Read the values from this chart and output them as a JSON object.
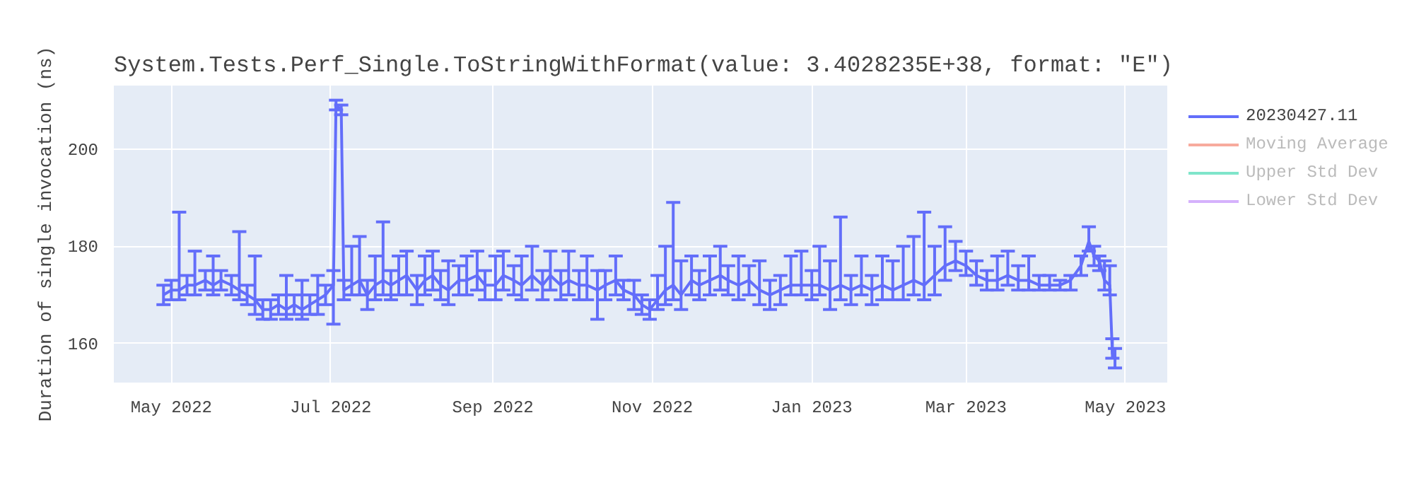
{
  "chart_data": {
    "type": "line",
    "title": "System.Tests.Perf_Single.ToStringWithFormat(value: 3.4028235E+38, format: \"E\")",
    "ylabel": "Duration of single invocation (ns)",
    "x": [
      "2022-04-28",
      "2022-05-01",
      "2022-05-04",
      "2022-05-07",
      "2022-05-10",
      "2022-05-14",
      "2022-05-17",
      "2022-05-20",
      "2022-05-24",
      "2022-05-27",
      "2022-05-30",
      "2022-06-02",
      "2022-06-05",
      "2022-06-08",
      "2022-06-11",
      "2022-06-14",
      "2022-06-17",
      "2022-06-20",
      "2022-06-23",
      "2022-06-26",
      "2022-06-29",
      "2022-07-02",
      "2022-07-03",
      "2022-07-05",
      "2022-07-06",
      "2022-07-09",
      "2022-07-12",
      "2022-07-15",
      "2022-07-18",
      "2022-07-21",
      "2022-07-24",
      "2022-07-27",
      "2022-07-30",
      "2022-08-03",
      "2022-08-06",
      "2022-08-09",
      "2022-08-12",
      "2022-08-15",
      "2022-08-19",
      "2022-08-22",
      "2022-08-26",
      "2022-08-29",
      "2022-09-02",
      "2022-09-05",
      "2022-09-09",
      "2022-09-12",
      "2022-09-16",
      "2022-09-20",
      "2022-09-23",
      "2022-09-27",
      "2022-09-30",
      "2022-10-04",
      "2022-10-07",
      "2022-10-11",
      "2022-10-14",
      "2022-10-18",
      "2022-10-21",
      "2022-10-25",
      "2022-10-28",
      "2022-10-31",
      "2022-11-03",
      "2022-11-06",
      "2022-11-09",
      "2022-11-12",
      "2022-11-16",
      "2022-11-19",
      "2022-11-23",
      "2022-11-27",
      "2022-11-30",
      "2022-12-04",
      "2022-12-08",
      "2022-12-12",
      "2022-12-16",
      "2022-12-20",
      "2022-12-24",
      "2022-12-28",
      "2023-01-01",
      "2023-01-04",
      "2023-01-08",
      "2023-01-12",
      "2023-01-16",
      "2023-01-20",
      "2023-01-24",
      "2023-01-28",
      "2023-02-01",
      "2023-02-05",
      "2023-02-09",
      "2023-02-13",
      "2023-02-17",
      "2023-02-21",
      "2023-02-25",
      "2023-03-01",
      "2023-03-05",
      "2023-03-09",
      "2023-03-13",
      "2023-03-17",
      "2023-03-21",
      "2023-03-25",
      "2023-03-29",
      "2023-04-02",
      "2023-04-06",
      "2023-04-10",
      "2023-04-14",
      "2023-04-17",
      "2023-04-19",
      "2023-04-21",
      "2023-04-23",
      "2023-04-25",
      "2023-04-26",
      "2023-04-27"
    ],
    "series": [
      {
        "name": "20230427.11",
        "color": "#636efa",
        "values": [
          170,
          171,
          171,
          172,
          172,
          173,
          172,
          173,
          172,
          171,
          170,
          169,
          167,
          167,
          168,
          167,
          168,
          167,
          168,
          169,
          170,
          172,
          209,
          208,
          171,
          172,
          173,
          170,
          172,
          173,
          172,
          173,
          174,
          171,
          173,
          174,
          172,
          171,
          173,
          173,
          174,
          172,
          172,
          174,
          173,
          172,
          174,
          172,
          174,
          172,
          173,
          172,
          172,
          171,
          172,
          173,
          171,
          170,
          168,
          167,
          169,
          171,
          172,
          170,
          173,
          172,
          173,
          174,
          173,
          172,
          173,
          171,
          170,
          171,
          172,
          172,
          172,
          172,
          171,
          172,
          171,
          172,
          171,
          172,
          171,
          172,
          173,
          172,
          174,
          176,
          177,
          176,
          174,
          173,
          173,
          174,
          173,
          173,
          172,
          172,
          172,
          173,
          176,
          181,
          178,
          177,
          173,
          172,
          158,
          157
        ],
        "errors": [
          2,
          2,
          [
            169,
            187
          ],
          2,
          [
            170,
            179
          ],
          2,
          [
            170,
            178
          ],
          2,
          2,
          [
            169,
            183
          ],
          2,
          [
            166,
            178
          ],
          2,
          2,
          2,
          [
            165,
            174
          ],
          2,
          [
            165,
            173
          ],
          2,
          [
            166,
            174
          ],
          2,
          [
            164,
            175
          ],
          1,
          1,
          2,
          [
            170,
            180
          ],
          [
            170,
            182
          ],
          3,
          [
            169,
            178
          ],
          [
            170,
            185
          ],
          3,
          [
            170,
            178
          ],
          [
            170,
            179
          ],
          3,
          [
            170,
            178
          ],
          [
            171,
            179
          ],
          3,
          [
            168,
            177
          ],
          3,
          [
            170,
            178
          ],
          [
            171,
            179
          ],
          3,
          [
            169,
            178
          ],
          [
            171,
            179
          ],
          3,
          [
            169,
            178
          ],
          [
            171,
            180
          ],
          3,
          [
            171,
            179
          ],
          3,
          [
            170,
            179
          ],
          3,
          [
            169,
            178
          ],
          [
            165,
            175
          ],
          3,
          [
            170,
            178
          ],
          2,
          3,
          2,
          2,
          [
            167,
            174
          ],
          [
            168,
            180
          ],
          [
            169,
            189
          ],
          [
            167,
            177
          ],
          [
            170,
            178
          ],
          3,
          [
            170,
            178
          ],
          [
            171,
            180
          ],
          3,
          [
            169,
            178
          ],
          3,
          [
            168,
            177
          ],
          3,
          3,
          [
            170,
            178
          ],
          [
            170,
            179
          ],
          3,
          [
            170,
            180
          ],
          [
            167,
            177
          ],
          [
            169,
            186
          ],
          3,
          [
            170,
            178
          ],
          3,
          [
            169,
            178
          ],
          [
            169,
            177
          ],
          [
            169,
            180
          ],
          [
            170,
            182
          ],
          [
            169,
            187
          ],
          [
            170,
            180
          ],
          [
            173,
            184
          ],
          [
            175,
            181
          ],
          [
            174,
            179
          ],
          [
            172,
            177
          ],
          [
            171,
            175
          ],
          [
            171,
            178
          ],
          [
            172,
            179
          ],
          [
            171,
            176
          ],
          [
            171,
            178
          ],
          [
            171,
            174
          ],
          [
            171,
            174
          ],
          [
            171,
            173
          ],
          [
            171,
            174
          ],
          [
            174,
            178
          ],
          [
            179,
            184
          ],
          [
            176,
            180
          ],
          [
            175,
            178
          ],
          [
            171,
            177
          ],
          [
            170,
            176
          ],
          [
            157,
            161
          ],
          [
            155,
            159
          ]
        ]
      },
      {
        "name": "Moving Average",
        "color": "#ef553b",
        "values": [
          null,
          null,
          null,
          null,
          null,
          null,
          null,
          null,
          null,
          null,
          null,
          null,
          null,
          null,
          null,
          null,
          null,
          null,
          null,
          null,
          null,
          null,
          null,
          null,
          null,
          null,
          null,
          null,
          null,
          null,
          null,
          null,
          null,
          null,
          null,
          null,
          null,
          null,
          null,
          null,
          null,
          null,
          null,
          null,
          null,
          null,
          null,
          null,
          null,
          null,
          null,
          null,
          null,
          null,
          null,
          null,
          null,
          null,
          null,
          null,
          null,
          null,
          null,
          null,
          null,
          null,
          null,
          null,
          null,
          null,
          null,
          null,
          null,
          null,
          null,
          null,
          null,
          null,
          null,
          null,
          null,
          null,
          null,
          null,
          null,
          null,
          null,
          null,
          null,
          null,
          null,
          null,
          null,
          null,
          null,
          null,
          null,
          null,
          null,
          null,
          null,
          null,
          null,
          null,
          null,
          null,
          null,
          null,
          null,
          null
        ]
      },
      {
        "name": "Upper Std Dev",
        "color": "#00cc96",
        "values": [
          null,
          null,
          null,
          null,
          null,
          null,
          null,
          null,
          null,
          null,
          null,
          null,
          null,
          null,
          null,
          null,
          null,
          null,
          null,
          null,
          null,
          null,
          null,
          null,
          null,
          null,
          null,
          null,
          null,
          null,
          null,
          null,
          null,
          null,
          null,
          null,
          null,
          null,
          null,
          null,
          null,
          null,
          null,
          null,
          null,
          null,
          null,
          null,
          null,
          null,
          null,
          null,
          null,
          null,
          null,
          null,
          null,
          null,
          null,
          null,
          null,
          null,
          null,
          null,
          null,
          null,
          null,
          null,
          null,
          null,
          null,
          null,
          null,
          null,
          null,
          null,
          null,
          null,
          null,
          null,
          null,
          null,
          null,
          null,
          null,
          null,
          null,
          null,
          null,
          null,
          null,
          null,
          null,
          null,
          null,
          null,
          null,
          null,
          null,
          null,
          null,
          null,
          null,
          null,
          null,
          null,
          null,
          null,
          null,
          null
        ]
      },
      {
        "name": "Lower Std Dev",
        "color": "#ab63fa",
        "values": [
          null,
          null,
          null,
          null,
          null,
          null,
          null,
          null,
          null,
          null,
          null,
          null,
          null,
          null,
          null,
          null,
          null,
          null,
          null,
          null,
          null,
          null,
          null,
          null,
          null,
          null,
          null,
          null,
          null,
          null,
          null,
          null,
          null,
          null,
          null,
          null,
          null,
          null,
          null,
          null,
          null,
          null,
          null,
          null,
          null,
          null,
          null,
          null,
          null,
          null,
          null,
          null,
          null,
          null,
          null,
          null,
          null,
          null,
          null,
          null,
          null,
          null,
          null,
          null,
          null,
          null,
          null,
          null,
          null,
          null,
          null,
          null,
          null,
          null,
          null,
          null,
          null,
          null,
          null,
          null,
          null,
          null,
          null,
          null,
          null,
          null,
          null,
          null,
          null,
          null,
          null,
          null,
          null,
          null,
          null,
          null,
          null,
          null,
          null,
          null,
          null,
          null,
          null,
          null,
          null,
          null,
          null,
          null,
          null,
          null
        ]
      }
    ],
    "xlim": [
      "2022-04-09",
      "2023-05-17"
    ],
    "ylim": [
      152,
      213
    ],
    "xticks": [
      {
        "value": "2022-05-01",
        "label": "May 2022"
      },
      {
        "value": "2022-07-01",
        "label": "Jul 2022"
      },
      {
        "value": "2022-09-01",
        "label": "Sep 2022"
      },
      {
        "value": "2022-11-01",
        "label": "Nov 2022"
      },
      {
        "value": "2023-01-01",
        "label": "Jan 2023"
      },
      {
        "value": "2023-03-01",
        "label": "Mar 2023"
      },
      {
        "value": "2023-05-01",
        "label": "May 2023"
      }
    ],
    "yticks": [
      160,
      180,
      200
    ],
    "grid": true,
    "legend": "right",
    "line_style": "solid"
  }
}
